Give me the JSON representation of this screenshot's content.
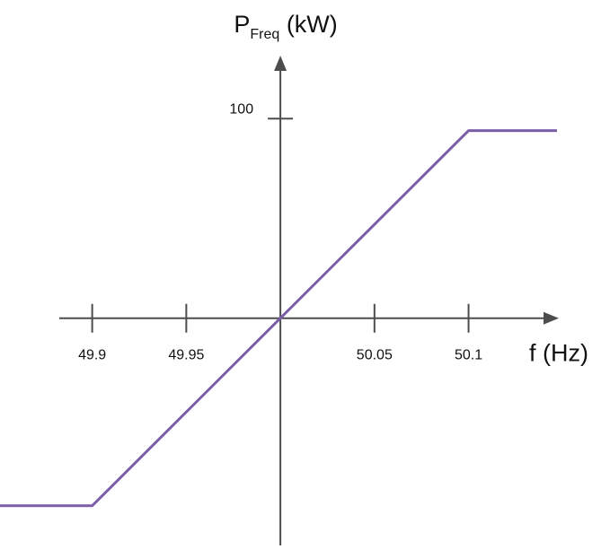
{
  "chart_data": {
    "type": "line",
    "title": "",
    "xlabel": "f (Hz)",
    "ylabel": {
      "main": "P",
      "subscript": "Freq",
      "unit": " (kW)"
    },
    "x_ticks": [
      {
        "value": 49.9,
        "label": "49.9"
      },
      {
        "value": 49.95,
        "label": "49.95"
      },
      {
        "value": 50.05,
        "label": "50.05"
      },
      {
        "value": 50.1,
        "label": "50.1"
      }
    ],
    "y_ticks": [
      {
        "value": 100,
        "label": "100"
      }
    ],
    "xlim": [
      49.851,
      50.147
    ],
    "ylim": [
      -112.5,
      132.5
    ],
    "axis_origin": {
      "x": 50.0,
      "y": 0
    },
    "grid": false,
    "legend": "none",
    "series": [
      {
        "color": "#7b5ea7",
        "x": [
          49.851,
          49.9,
          50.1,
          50.147
        ],
        "y": [
          -94,
          -94,
          94,
          94
        ]
      }
    ],
    "colors": {
      "axis": "#4d4d4d",
      "text": "#111111"
    }
  }
}
